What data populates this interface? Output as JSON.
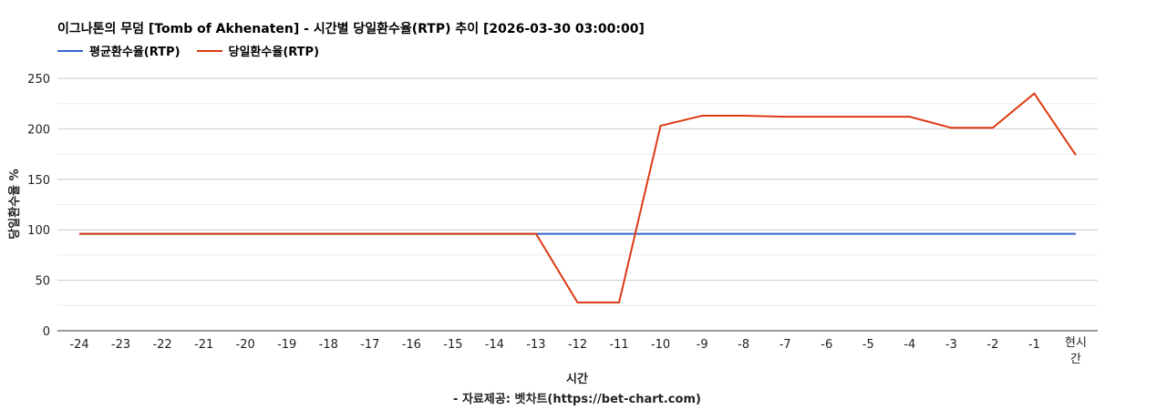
{
  "chart_data": {
    "type": "line",
    "title": "이그나톤의 무덤 [Tomb of Akhenaten] - 시간별 당일환수율(RTP) 추이 [2026-03-30 03:00:00]",
    "xlabel": "시간",
    "ylabel": "당일환수율 %",
    "source": "- 자료제공: 벳차트(https://bet-chart.com)",
    "categories": [
      "-24",
      "-23",
      "-22",
      "-21",
      "-20",
      "-19",
      "-18",
      "-17",
      "-16",
      "-15",
      "-14",
      "-13",
      "-12",
      "-11",
      "-10",
      "-9",
      "-8",
      "-7",
      "-6",
      "-5",
      "-4",
      "-3",
      "-2",
      "-1",
      "현시간"
    ],
    "ylim": [
      0,
      250
    ],
    "yticks": [
      0,
      50,
      100,
      150,
      200,
      250
    ],
    "grid": true,
    "legend_position": "top-left",
    "series": [
      {
        "name": "평균환수율(RTP)",
        "color": "#3366cc",
        "values": [
          96,
          96,
          96,
          96,
          96,
          96,
          96,
          96,
          96,
          96,
          96,
          96,
          96,
          96,
          96,
          96,
          96,
          96,
          96,
          96,
          96,
          96,
          96,
          96,
          96
        ]
      },
      {
        "name": "당일환수율(RTP)",
        "color": "#dc3912",
        "values": [
          96,
          96,
          96,
          96,
          96,
          96,
          96,
          96,
          96,
          96,
          96,
          96,
          28,
          28,
          203,
          213,
          213,
          212,
          212,
          212,
          212,
          201,
          201,
          235,
          174
        ]
      }
    ]
  }
}
